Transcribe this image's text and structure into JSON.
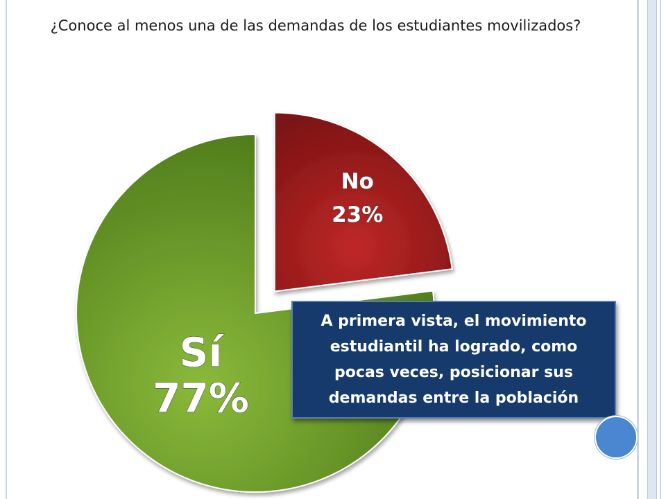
{
  "title": "¿Conoce al menos una de las demandas de los estudiantes movilizados?",
  "callout": {
    "text": "A primera vista, el movimiento estudiantil ha logrado, como pocas veces, posicionar sus demandas entre la población"
  },
  "chart_data": {
    "type": "pie",
    "title": "¿Conoce al menos una de las demandas de los estudiantes movilizados?",
    "slices": [
      {
        "label": "Sí",
        "value": 77,
        "display": "77%",
        "color": "#6e9a2a"
      },
      {
        "label": "No",
        "value": 23,
        "display": "23%",
        "color": "#a51f1f"
      }
    ],
    "legend": "none",
    "exploded": "No"
  }
}
